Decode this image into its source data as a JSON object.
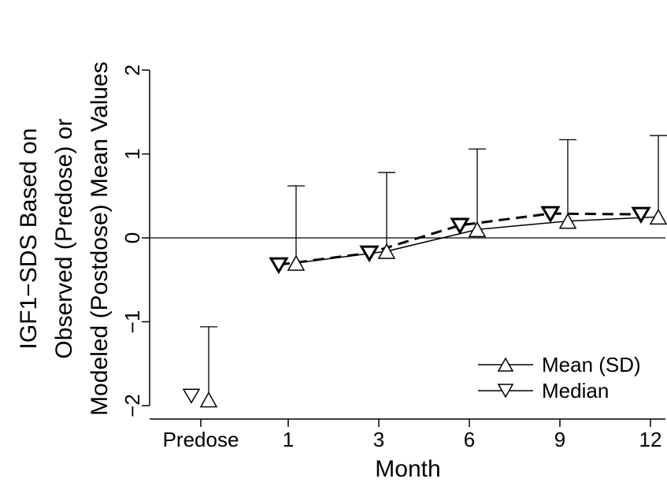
{
  "chart_data": {
    "type": "line",
    "title": "",
    "xlabel": "Month",
    "ylabel_lines": [
      "IGF1−SDS Based on",
      "Observed (Predose) or",
      "Modeled (Postdose) Mean Values"
    ],
    "categories": [
      "Predose",
      "1",
      "3",
      "6",
      "9",
      "12"
    ],
    "ylim": [
      -2.15,
      2.1
    ],
    "yticks": [
      -2,
      -1,
      0,
      1,
      2
    ],
    "ytick_labels": [
      "−2",
      "−1",
      "0",
      "1",
      "2"
    ],
    "reference_line_y": 0,
    "series": [
      {
        "name": "Mean (SD)",
        "marker": "triangle-up",
        "line_style": "solid",
        "connect_from_index": 1,
        "values": [
          -1.93,
          -0.3,
          -0.16,
          0.1,
          0.2,
          0.25
        ],
        "sd_upper": [
          -1.06,
          0.62,
          0.78,
          1.06,
          1.17,
          1.22
        ]
      },
      {
        "name": "Median",
        "marker": "triangle-down",
        "line_style": "dashed",
        "connect_from_index": 1,
        "values": [
          -1.88,
          -0.32,
          -0.18,
          0.15,
          0.29,
          0.28
        ]
      }
    ],
    "legend": {
      "placement": "bottom-right",
      "entries": [
        "Mean (SD)",
        "Median"
      ]
    }
  }
}
